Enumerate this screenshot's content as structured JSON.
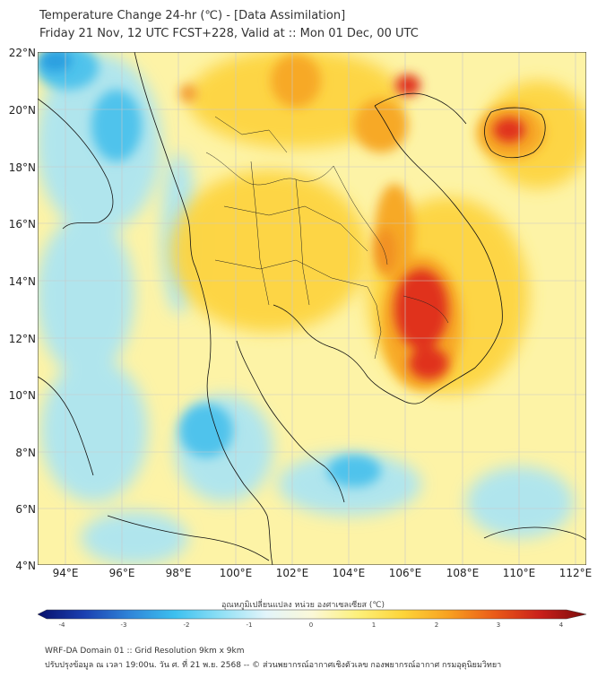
{
  "title_line1": "Temperature Change 24-hr (℃) - [Data Assimilation]",
  "title_line2": "Friday 21 Nov, 12 UTC FCST+228, Valid at :: Mon 01 Dec, 00 UTC",
  "lat_labels": [
    "22°N",
    "20°N",
    "18°N",
    "16°N",
    "14°N",
    "12°N",
    "10°N",
    "8°N",
    "6°N",
    "4°N"
  ],
  "lon_labels": [
    "94°E",
    "96°E",
    "98°E",
    "100°E",
    "102°E",
    "104°E",
    "106°E",
    "108°E",
    "110°E",
    "112°E"
  ],
  "colorbar": {
    "label": "อุณหภูมิเปลี่ยนแปลง หน่วย องศาเซลเซียส (℃)",
    "ticks": [
      "-4",
      "-3",
      "-2",
      "-1",
      "0",
      "1",
      "2",
      "3",
      "4"
    ],
    "colors": [
      "#08106b",
      "#1a3fb0",
      "#2f84d8",
      "#3cc0ef",
      "#8fe0f5",
      "#e3f5fa",
      "#fbf8d8",
      "#fdf07a",
      "#fdd438",
      "#f8a020",
      "#ea5a18",
      "#c9201a",
      "#7a0c0c"
    ]
  },
  "footer_line1": "WRF-DA Domain 01 :: Grid Resolution 9km x 9km",
  "footer_line2": "ปรับปรุงข้อมูล ณ เวลา 19:00น. วัน ศ. ที่ 21 พ.ย. 2568 -- © ส่วนพยากรณ์อากาศเชิงตัวเลข กองพยากรณ์อากาศ กรมอุตุนิยมวิทยา",
  "colors": {
    "background_field": "#fdf3a6",
    "cool_anomaly": "#4fc3ec",
    "warm_anomaly": "#f7a928",
    "hot_anomaly": "#e0301a",
    "grid": "#c8c8c8",
    "coastline": "#111111"
  }
}
